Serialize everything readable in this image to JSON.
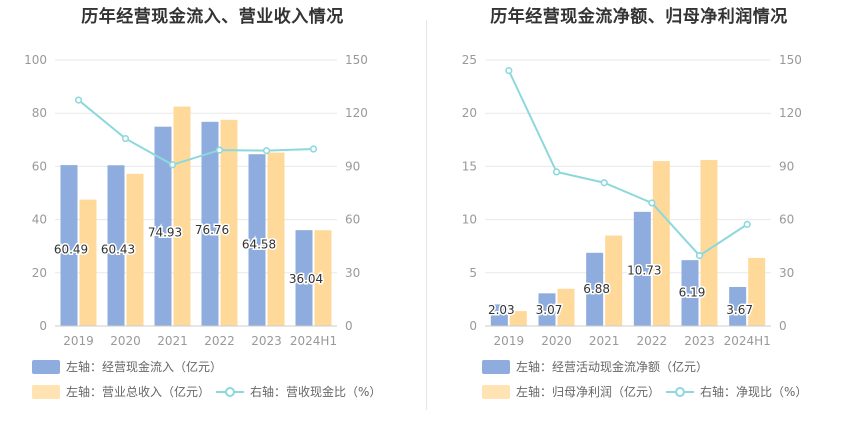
{
  "colors": {
    "bar_left": "#8eadde",
    "bar_right": "#ffd999",
    "line": "#8dd8dc",
    "grid": "#e8e8e8",
    "axis_text": "#999999"
  },
  "chart_data": [
    {
      "type": "bar",
      "title": "历年经营现金流入、营业收入情况",
      "categories": [
        "2019",
        "2020",
        "2021",
        "2022",
        "2023",
        "2024H1"
      ],
      "y_left": {
        "min": 0,
        "max": 100,
        "ticks": [
          0,
          20,
          40,
          60,
          80,
          100
        ]
      },
      "y_right": {
        "min": 0,
        "max": 150,
        "ticks": [
          0,
          30,
          60,
          90,
          120,
          150
        ]
      },
      "series": [
        {
          "name": "左轴：经营现金流入（亿元）",
          "kind": "bar",
          "axis": "left",
          "values": [
            60.49,
            60.43,
            74.93,
            76.76,
            64.58,
            36.04
          ],
          "labels": [
            "60.49",
            "60.43",
            "74.93",
            "76.76",
            "64.58",
            "36.04"
          ]
        },
        {
          "name": "左轴：营业总收入（亿元）",
          "kind": "bar",
          "axis": "left",
          "values": [
            47.5,
            57.2,
            82.5,
            77.5,
            65.2,
            36.0
          ]
        },
        {
          "name": "右轴：营收现金比（%）",
          "kind": "line",
          "axis": "right",
          "values": [
            127.4,
            105.7,
            90.9,
            99.2,
            98.9,
            99.8
          ]
        }
      ],
      "legend": [
        "左轴：经营现金流入（亿元）",
        "左轴：营业总收入（亿元）",
        "右轴：营收现金比（%）"
      ]
    },
    {
      "type": "bar",
      "title": "历年经营现金流净额、归母净利润情况",
      "categories": [
        "2019",
        "2020",
        "2021",
        "2022",
        "2023",
        "2024H1"
      ],
      "y_left": {
        "min": 0,
        "max": 25,
        "ticks": [
          0,
          5,
          10,
          15,
          20,
          25
        ]
      },
      "y_right": {
        "min": 0,
        "max": 150,
        "ticks": [
          0,
          30,
          60,
          90,
          120,
          150
        ]
      },
      "series": [
        {
          "name": "左轴：经营活动现金流净额（亿元）",
          "kind": "bar",
          "axis": "left",
          "values": [
            2.03,
            3.07,
            6.88,
            10.73,
            6.19,
            3.67
          ],
          "labels": [
            "2.03",
            "3.07",
            "6.88",
            "10.73",
            "6.19",
            "3.67"
          ]
        },
        {
          "name": "左轴：归母净利润（亿元）",
          "kind": "bar",
          "axis": "left",
          "values": [
            1.4,
            3.5,
            8.5,
            15.5,
            15.6,
            6.4
          ]
        },
        {
          "name": "右轴：净现比（%）",
          "kind": "line",
          "axis": "right",
          "values": [
            144.0,
            86.9,
            80.8,
            69.4,
            39.7,
            57.3
          ]
        }
      ],
      "legend": [
        "左轴：经营活动现金流净额（亿元）",
        "左轴：归母净利润（亿元）",
        "右轴：净现比（%）"
      ]
    }
  ]
}
